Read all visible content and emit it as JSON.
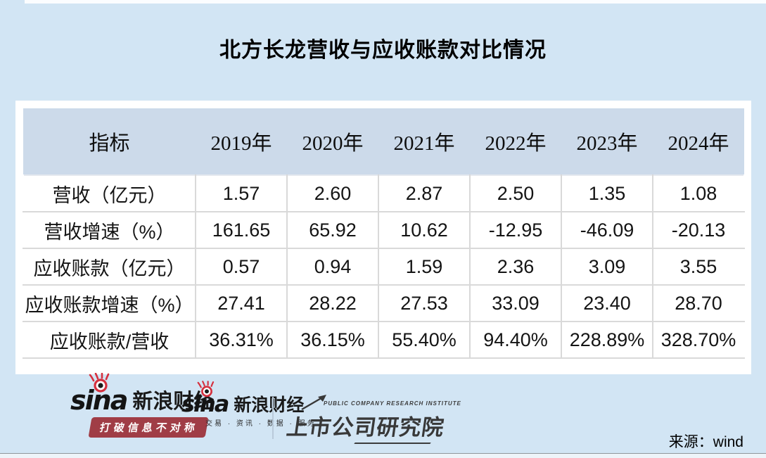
{
  "page": {
    "title": "北方长龙营收与应收账款对比情况",
    "source_label": "来源：wind"
  },
  "table": {
    "header": [
      "指标",
      "2019年",
      "2020年",
      "2021年",
      "2022年",
      "2023年",
      "2024年"
    ],
    "rows": [
      {
        "label": "营收（亿元）",
        "values": [
          "1.57",
          "2.60",
          "2.87",
          "2.50",
          "1.35",
          "1.08"
        ]
      },
      {
        "label": "营收增速（%）",
        "values": [
          "161.65",
          "65.92",
          "10.62",
          "-12.95",
          "-46.09",
          "-20.13"
        ]
      },
      {
        "label": "应收账款（亿元）",
        "values": [
          "0.57",
          "0.94",
          "1.59",
          "2.36",
          "3.09",
          "3.55"
        ]
      },
      {
        "label": "应收账款增速（%）",
        "values": [
          "27.41",
          "28.22",
          "27.53",
          "33.09",
          "23.40",
          "28.70"
        ]
      },
      {
        "label": "应收账款/营收",
        "values": [
          "36.31%",
          "36.15%",
          "55.40%",
          "94.40%",
          "228.89%",
          "328.70%"
        ]
      }
    ]
  },
  "footer": {
    "sina_primary": {
      "brand": "sina",
      "brand_cn": "新浪财经",
      "slogan": "打破信息不对称"
    },
    "sina_secondary": {
      "brand": "sina",
      "brand_cn": "新浪财经",
      "tagline": "交易 · 资讯 · 数据 · 服务"
    },
    "institute": {
      "name_en": "PUBLIC COMPANY RESEARCH INSTITUTE",
      "name_cn": "上市公司研究院"
    }
  },
  "colors": {
    "page_background": "#d2e5f4",
    "panel_background": "#ffffff",
    "header_row_background": "#ccdaea",
    "cell_border": "#d9d9d9",
    "sina_red": "#d5303e",
    "banner_red": "#a03d46",
    "text": "#111111"
  },
  "chart_data": {
    "type": "table",
    "title": "北方长龙营收与应收账款对比情况",
    "categories": [
      "2019年",
      "2020年",
      "2021年",
      "2022年",
      "2023年",
      "2024年"
    ],
    "series": [
      {
        "name": "营收（亿元）",
        "values": [
          1.57,
          2.6,
          2.87,
          2.5,
          1.35,
          1.08
        ]
      },
      {
        "name": "营收增速（%）",
        "values": [
          161.65,
          65.92,
          10.62,
          -12.95,
          -46.09,
          -20.13
        ]
      },
      {
        "name": "应收账款（亿元）",
        "values": [
          0.57,
          0.94,
          1.59,
          2.36,
          3.09,
          3.55
        ]
      },
      {
        "name": "应收账款增速（%）",
        "values": [
          27.41,
          28.22,
          27.53,
          33.09,
          23.4,
          28.7
        ]
      },
      {
        "name": "应收账款/营收（%）",
        "values": [
          36.31,
          36.15,
          55.4,
          94.4,
          228.89,
          328.7
        ]
      }
    ],
    "legend_position": "none",
    "grid": true,
    "source": "wind"
  }
}
